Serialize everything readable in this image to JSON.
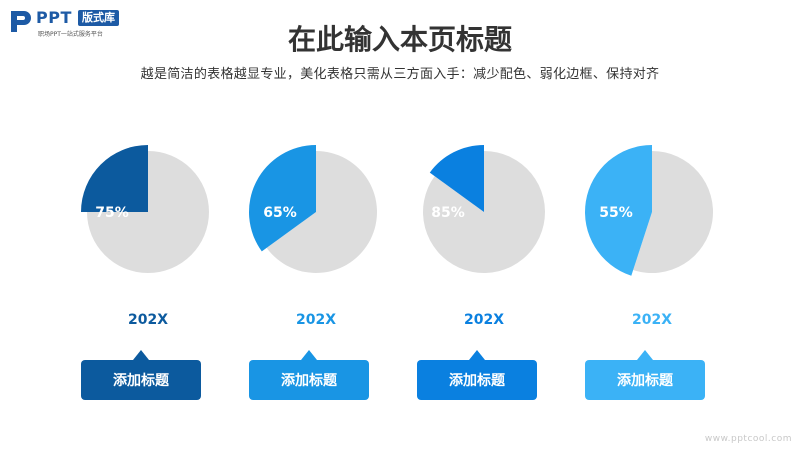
{
  "logo": {
    "brand": "PPT",
    "tag": "版式库",
    "tagline": "职场PPT一站式服务平台"
  },
  "header": {
    "title": "在此输入本页标题",
    "subtitle": "越是简洁的表格越显专业，美化表格只需从三方面入手：减少配色、弱化边框、保持对齐"
  },
  "chart_data": [
    {
      "type": "pie",
      "values": [
        75,
        25
      ],
      "percent": 75,
      "data_label": "75%",
      "year": "202X",
      "caption": "添加标题",
      "color": "#0c5a9e",
      "rest_color": "#dddddd"
    },
    {
      "type": "pie",
      "values": [
        65,
        35
      ],
      "percent": 65,
      "data_label": "65%",
      "year": "202X",
      "caption": "添加标题",
      "color": "#1995e4",
      "rest_color": "#dddddd"
    },
    {
      "type": "pie",
      "values": [
        85,
        15
      ],
      "percent": 85,
      "data_label": "85%",
      "year": "202X",
      "caption": "添加标题",
      "color": "#0a80e0",
      "rest_color": "#dddddd"
    },
    {
      "type": "pie",
      "values": [
        55,
        45
      ],
      "percent": 55,
      "data_label": "55%",
      "year": "202X",
      "caption": "添加标题",
      "color": "#3bb2f6",
      "rest_color": "#dddddd"
    }
  ],
  "watermark": "www.pptcool.com"
}
